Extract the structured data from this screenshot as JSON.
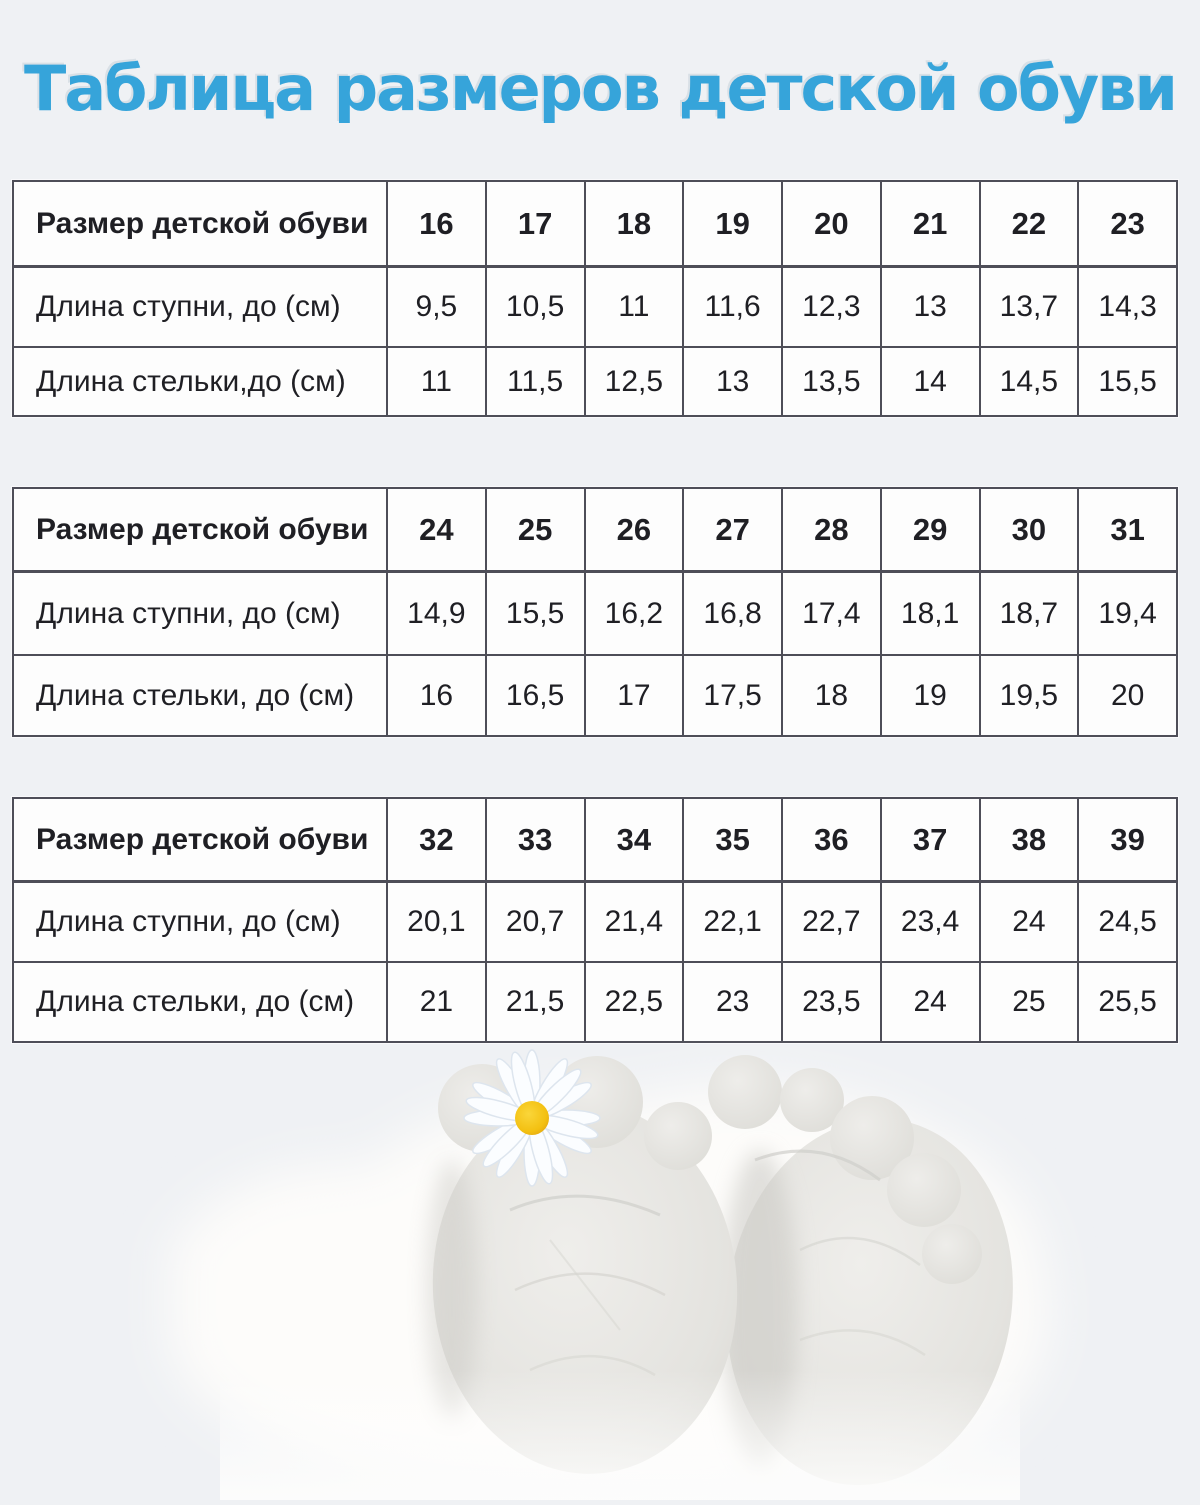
{
  "page": {
    "title": "Таблица размеров детской обуви",
    "colors": {
      "title_blue": "#36a4da",
      "background": "#eff1f4",
      "table_border": "#4e4e58",
      "cell_background": "#fdfdfd",
      "text": "#1f1f24",
      "daisy_center_yellow": "#f3c011",
      "foot_gray": "#e6e5e1"
    }
  },
  "tables": [
    {
      "header_label": "Размер детской обуви",
      "sizes": [
        "16",
        "17",
        "18",
        "19",
        "20",
        "21",
        "22",
        "23"
      ],
      "rows": [
        {
          "label": "Длина ступни, до (см)",
          "values": [
            "9,5",
            "10,5",
            "11",
            "11,6",
            "12,3",
            "13",
            "13,7",
            "14,3"
          ]
        },
        {
          "label": "Длина стельки,до (см)",
          "values": [
            "11",
            "11,5",
            "12,5",
            "13",
            "13,5",
            "14",
            "14,5",
            "15,5"
          ]
        }
      ]
    },
    {
      "header_label": "Размер детской обуви",
      "sizes": [
        "24",
        "25",
        "26",
        "27",
        "28",
        "29",
        "30",
        "31"
      ],
      "rows": [
        {
          "label": "Длина ступни, до (см)",
          "values": [
            "14,9",
            "15,5",
            "16,2",
            "16,8",
            "17,4",
            "18,1",
            "18,7",
            "19,4"
          ]
        },
        {
          "label": "Длина стельки, до (см)",
          "values": [
            "16",
            "16,5",
            "17",
            "17,5",
            "18",
            "19",
            "19,5",
            "20"
          ]
        }
      ]
    },
    {
      "header_label": "Размер детской обуви",
      "sizes": [
        "32",
        "33",
        "34",
        "35",
        "36",
        "37",
        "38",
        "39"
      ],
      "rows": [
        {
          "label": "Длина ступни, до (см)",
          "values": [
            "20,1",
            "20,7",
            "21,4",
            "22,1",
            "22,7",
            "23,4",
            "24",
            "24,5"
          ]
        },
        {
          "label": "Длина стельки, до (см)",
          "values": [
            "21",
            "21,5",
            "22,5",
            "23",
            "23,5",
            "24",
            "25",
            "25,5"
          ]
        }
      ]
    }
  ],
  "illustration": {
    "name": "baby-feet-with-daisy"
  }
}
